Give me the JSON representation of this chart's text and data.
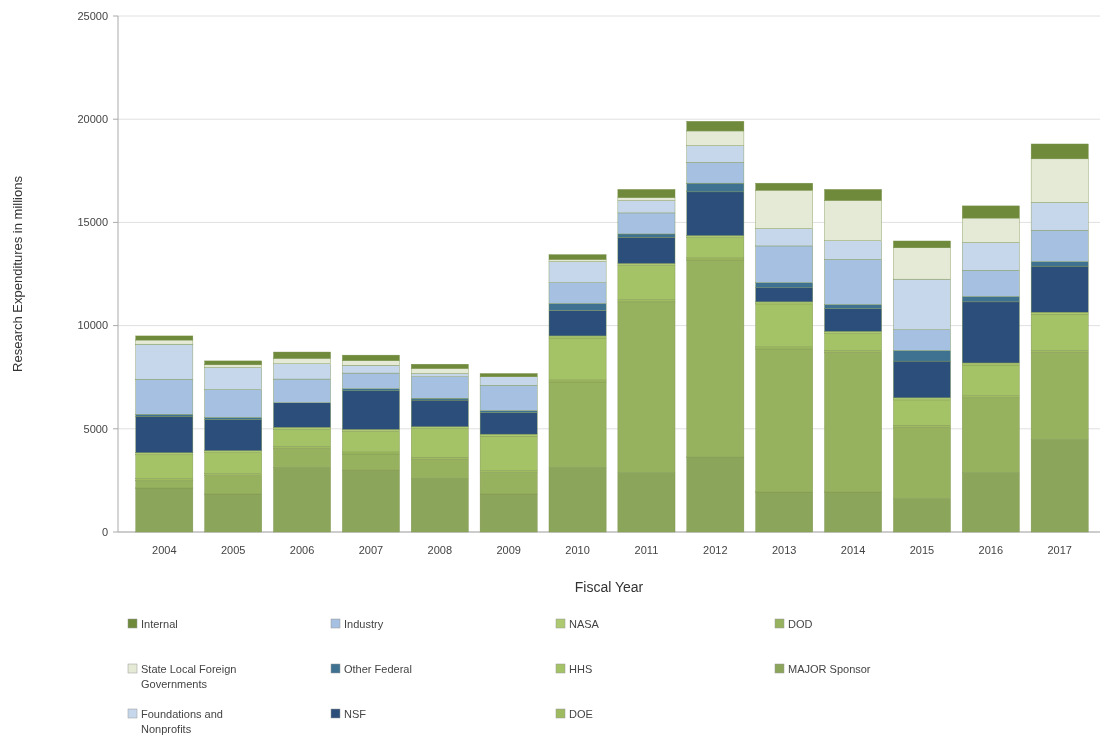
{
  "chart_data": {
    "type": "bar",
    "stacked": true,
    "xlabel": "Fiscal Year",
    "ylabel": "Research Expenditures in millions",
    "categories": [
      "2004",
      "2005",
      "2006",
      "2007",
      "2008",
      "2009",
      "2010",
      "2011",
      "2012",
      "2013",
      "2014",
      "2015",
      "2016",
      "2017"
    ],
    "ylim": [
      0,
      25000
    ],
    "yticks": [
      0,
      5000,
      10000,
      15000,
      20000,
      25000
    ],
    "grid": "y",
    "legend": "bottom",
    "series": [
      {
        "name": "MAJOR Sponsor",
        "color": "#8ba55a",
        "values": [
          2130,
          1840,
          3130,
          3000,
          2600,
          1840,
          3130,
          2880,
          3630,
          1940,
          1940,
          1610,
          2880,
          4480
        ]
      },
      {
        "name": "DOD",
        "color": "#97b25e",
        "values": [
          350,
          890,
          920,
          780,
          920,
          1030,
          4140,
          8270,
          9550,
          6930,
          6760,
          3460,
          3620,
          4220
        ]
      },
      {
        "name": "DOE",
        "color": "#9fbb5f",
        "values": [
          100,
          100,
          100,
          100,
          100,
          100,
          100,
          100,
          100,
          100,
          100,
          100,
          100,
          100
        ]
      },
      {
        "name": "HHS",
        "color": "#a4c266",
        "values": [
          1160,
          1010,
          820,
          990,
          1380,
          1670,
          2030,
          1660,
          980,
          2080,
          820,
          1230,
          1490,
          1750
        ]
      },
      {
        "name": "NASA",
        "color": "#adca70",
        "values": [
          100,
          100,
          100,
          100,
          100,
          100,
          100,
          100,
          100,
          100,
          100,
          100,
          100,
          100
        ]
      },
      {
        "name": "NSF",
        "color": "#2b4f7a",
        "values": [
          1770,
          1510,
          1190,
          1870,
          1290,
          1050,
          1230,
          1270,
          2120,
          680,
          1100,
          1780,
          2960,
          2230
        ]
      },
      {
        "name": "Other Federal",
        "color": "#3f7291",
        "values": [
          90,
          100,
          null,
          100,
          90,
          90,
          340,
          160,
          420,
          250,
          200,
          510,
          260,
          220
        ]
      },
      {
        "name": "Industry",
        "color": "#a5c0e0",
        "values": [
          1700,
          1350,
          1150,
          760,
          1040,
          1230,
          1010,
          1020,
          1010,
          1780,
          2190,
          1010,
          1270,
          1520
        ]
      },
      {
        "name": "Foundations and Nonprofits",
        "color": "#c6d7ec",
        "values": [
          1700,
          1070,
          740,
          380,
          160,
          410,
          1020,
          600,
          810,
          840,
          900,
          2450,
          1350,
          1350
        ]
      },
      {
        "name": "State Local Foreign Governments",
        "color": "#e4ead6",
        "values": [
          200,
          130,
          260,
          220,
          240,
          null,
          100,
          140,
          710,
          1860,
          1950,
          1520,
          1180,
          2110
        ]
      },
      {
        "name": "Internal",
        "color": "#6f8a3a",
        "values": [
          200,
          190,
          310,
          270,
          210,
          160,
          240,
          400,
          470,
          340,
          540,
          330,
          590,
          720
        ]
      }
    ]
  }
}
